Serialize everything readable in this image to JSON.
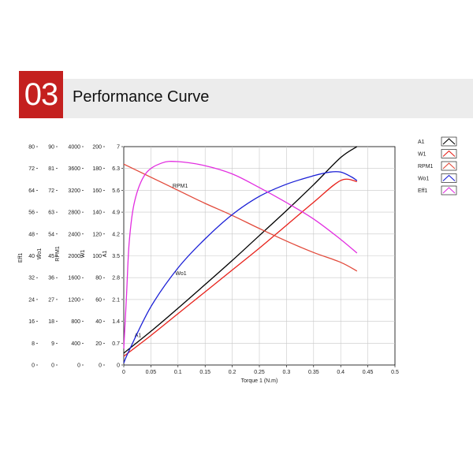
{
  "header": {
    "number": "03",
    "title": "Performance Curve"
  },
  "colors": {
    "badge": "#c4201f",
    "band": "#ececec"
  },
  "chart_data": {
    "type": "line",
    "xlabel": "Torque 1 (N.m)",
    "xlim": [
      0,
      0.5
    ],
    "x_ticks": [
      "0",
      "0.05",
      "0.1",
      "0.15",
      "0.2",
      "0.25",
      "0.3",
      "0.35",
      "0.4",
      "0.45",
      "0.5"
    ],
    "grid": true,
    "legend_position": "right",
    "y_axes": [
      {
        "label": "Eff1",
        "range": [
          0,
          80
        ],
        "ticks": [
          "0",
          "8",
          "16",
          "24",
          "32",
          "40",
          "48",
          "56",
          "64",
          "72",
          "80"
        ]
      },
      {
        "label": "Wo1",
        "range": [
          0,
          90
        ],
        "ticks": [
          "0",
          "9",
          "18",
          "27",
          "36",
          "45",
          "54",
          "63",
          "72",
          "81",
          "90"
        ]
      },
      {
        "label": "RPM1",
        "range": [
          0,
          4000
        ],
        "ticks": [
          "0",
          "400",
          "800",
          "1200",
          "1600",
          "2000",
          "2400",
          "2800",
          "3200",
          "3600",
          "4000"
        ]
      },
      {
        "label": "W1",
        "range": [
          0,
          200
        ],
        "ticks": [
          "0",
          "20",
          "40",
          "60",
          "80",
          "100",
          "120",
          "140",
          "160",
          "180",
          "200"
        ]
      },
      {
        "label": "A1",
        "range": [
          0,
          7
        ],
        "ticks": [
          "0",
          "0.7",
          "1.4",
          "2.1",
          "2.8",
          "3.5",
          "4.2",
          "4.9",
          "5.6",
          "6.3",
          "7"
        ]
      }
    ],
    "series": [
      {
        "name": "A1",
        "axis": "A1",
        "color": "#000000",
        "label_at": [
          0.02,
          0.9
        ],
        "points": [
          [
            0,
            0.38
          ],
          [
            0.05,
            1.08
          ],
          [
            0.1,
            1.82
          ],
          [
            0.15,
            2.58
          ],
          [
            0.2,
            3.35
          ],
          [
            0.25,
            4.15
          ],
          [
            0.3,
            4.95
          ],
          [
            0.35,
            5.78
          ],
          [
            0.4,
            6.65
          ],
          [
            0.43,
            7.0
          ]
        ]
      },
      {
        "name": "W1",
        "axis": "W1",
        "color": "#e8221b",
        "points": [
          [
            0,
            8
          ],
          [
            0.05,
            27
          ],
          [
            0.1,
            47
          ],
          [
            0.15,
            67
          ],
          [
            0.2,
            87
          ],
          [
            0.25,
            107
          ],
          [
            0.3,
            128
          ],
          [
            0.35,
            149
          ],
          [
            0.4,
            169
          ],
          [
            0.43,
            168
          ]
        ]
      },
      {
        "name": "RPM1",
        "axis": "RPM1",
        "color": "#e24a3b",
        "label_at": [
          0.09,
          3250
        ],
        "points": [
          [
            0,
            3680
          ],
          [
            0.05,
            3440
          ],
          [
            0.1,
            3200
          ],
          [
            0.15,
            2960
          ],
          [
            0.2,
            2740
          ],
          [
            0.25,
            2500
          ],
          [
            0.3,
            2270
          ],
          [
            0.35,
            2060
          ],
          [
            0.4,
            1880
          ],
          [
            0.43,
            1720
          ]
        ]
      },
      {
        "name": "Wo1",
        "axis": "Wo1",
        "color": "#1a1fd6",
        "label_at": [
          0.095,
          37
        ],
        "points": [
          [
            0,
            0.8
          ],
          [
            0.01,
            6
          ],
          [
            0.05,
            24
          ],
          [
            0.1,
            40
          ],
          [
            0.15,
            52
          ],
          [
            0.2,
            62
          ],
          [
            0.25,
            69.5
          ],
          [
            0.3,
            74.5
          ],
          [
            0.35,
            78
          ],
          [
            0.38,
            79.5
          ],
          [
            0.4,
            79.5
          ],
          [
            0.42,
            77.5
          ],
          [
            0.43,
            76
          ]
        ]
      },
      {
        "name": "Eff1",
        "axis": "Eff1",
        "color": "#e22ee0",
        "points": [
          [
            0,
            6
          ],
          [
            0.005,
            25
          ],
          [
            0.01,
            45
          ],
          [
            0.02,
            60
          ],
          [
            0.04,
            70
          ],
          [
            0.07,
            74
          ],
          [
            0.1,
            74.5
          ],
          [
            0.15,
            73
          ],
          [
            0.2,
            70
          ],
          [
            0.25,
            65
          ],
          [
            0.3,
            59.5
          ],
          [
            0.35,
            53.5
          ],
          [
            0.4,
            46
          ],
          [
            0.43,
            41
          ]
        ]
      }
    ]
  }
}
